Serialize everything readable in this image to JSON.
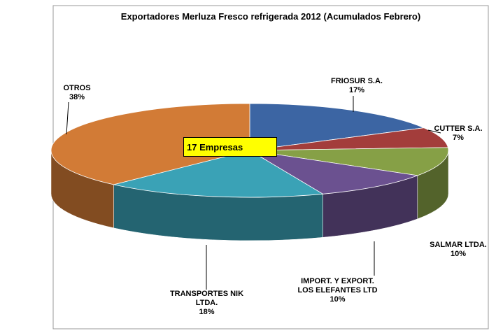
{
  "chart_data": {
    "type": "pie3d",
    "title": "Exportadores Merluza Fresco refrigerada 2012 (Acumulados Febrero)",
    "categories": [
      "FRIOSUR S.A.",
      "CUTTER S.A.",
      "SALMAR LTDA.",
      "IMPORT. Y EXPORT. LOS ELEFANTES LTD",
      "TRANSPORTES NIK LTDA.",
      "OTROS"
    ],
    "values": [
      17,
      7,
      10,
      10,
      18,
      38
    ],
    "value_labels": [
      "17%",
      "7%",
      "10%",
      "10%",
      "18%",
      "38%"
    ],
    "colors": [
      "#3c65a3",
      "#a33d3b",
      "#86a046",
      "#6b5190",
      "#3aa2b6",
      "#d27b36"
    ],
    "annotation": "17 Empresas"
  }
}
